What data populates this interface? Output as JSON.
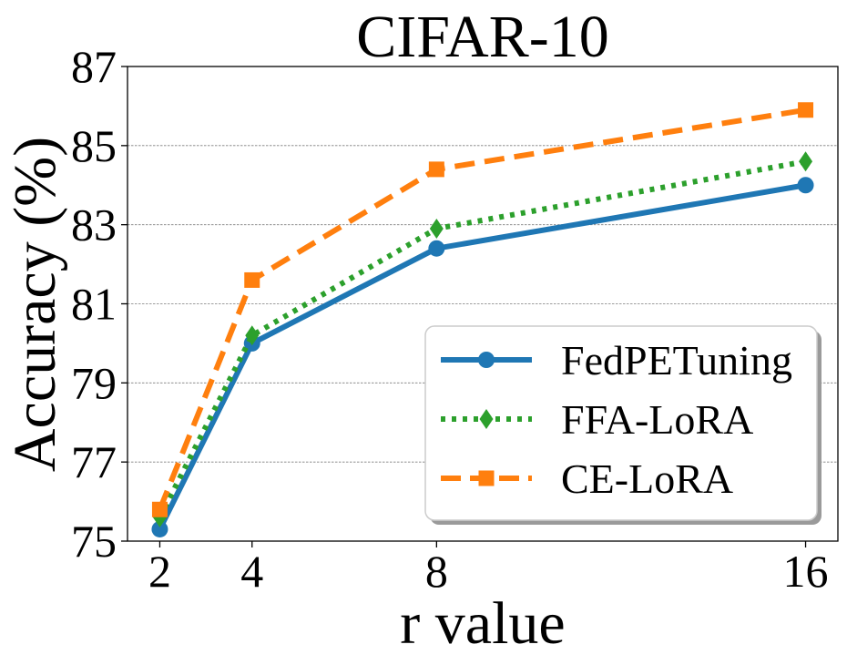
{
  "chart_data": {
    "type": "line",
    "title": "CIFAR-10",
    "xlabel": "r value",
    "ylabel": "Accuracy (%)",
    "x": [
      2,
      4,
      8,
      16
    ],
    "x_tick_labels": [
      "2",
      "4",
      "8",
      "16"
    ],
    "xlim": [
      1.3,
      16.7
    ],
    "ylim": [
      75,
      87
    ],
    "y_ticks": [
      75,
      77,
      79,
      81,
      83,
      85,
      87
    ],
    "y_tick_labels": [
      "75",
      "77",
      "79",
      "81",
      "83",
      "85",
      "87"
    ],
    "grid": "horizontal dashed",
    "legend_position": "lower-right",
    "series": [
      {
        "name": "FedPETuning",
        "values": [
          75.3,
          80.0,
          82.4,
          84.0
        ],
        "color": "#1f77b4",
        "line_style": "solid",
        "marker": "circle"
      },
      {
        "name": "FFA-LoRA",
        "values": [
          75.6,
          80.2,
          82.9,
          84.6
        ],
        "color": "#2ca02c",
        "line_style": "dotted",
        "marker": "diamond"
      },
      {
        "name": "CE-LoRA",
        "values": [
          75.8,
          81.6,
          84.4,
          85.9
        ],
        "color": "#ff7f0e",
        "line_style": "dashed",
        "marker": "square"
      }
    ]
  }
}
